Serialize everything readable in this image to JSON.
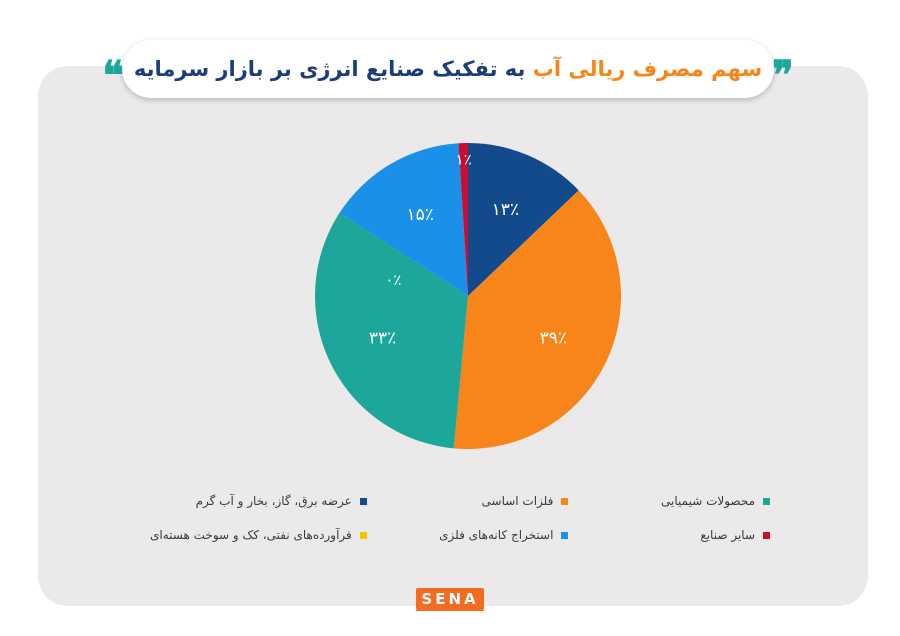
{
  "title": {
    "orange_part": "سهم مصرف ریالی آب",
    "navy_part": "به تفکیک صنایع انرژی بر بازار سرمایه"
  },
  "quote_icons": [
    "quote-open-icon",
    "quote-close-icon"
  ],
  "chart_data": {
    "type": "pie",
    "title": "سهم مصرف ریالی آب به تفکیک صنایع انرژی بر بازار سرمایه",
    "start": "top, clockwise",
    "slices": [
      {
        "name": "عرضه برق، گاز، بخار و آب گرم",
        "value": 13,
        "label": "۱۳٪",
        "color": "#134a8c"
      },
      {
        "name": "فلزات اساسی",
        "value": 39,
        "label": "۳۹٪",
        "color": "#f7851a"
      },
      {
        "name": "محصولات شیمیایی",
        "value": 33,
        "label": "۳۳٪",
        "color": "#1ca79a"
      },
      {
        "name": "فرآورده‌های نفتی، کک و سوخت هسته‌ای",
        "value": 0,
        "label": "۰٪",
        "color": "#f9c200"
      },
      {
        "name": "استخراج کانه‌های فلزی",
        "value": 15,
        "label": "۱۵٪",
        "color": "#1a90e8"
      },
      {
        "name": "سایر صنایع",
        "value": 1,
        "label": "۱٪",
        "color": "#c8102e"
      }
    ]
  },
  "legend": [
    {
      "label": "محصولات شیمیایی",
      "color": "#1ca79a"
    },
    {
      "label": "فلزات اساسی",
      "color": "#f7851a"
    },
    {
      "label": "عرضه برق، گاز، بخار و آب گرم",
      "color": "#134a8c"
    },
    {
      "label": "سایر صنایع",
      "color": "#c8102e"
    },
    {
      "label": "استخراج کانه‌های فلزی",
      "color": "#1a90e8"
    },
    {
      "label": "فرآورده‌های نفتی، کک و سوخت هسته‌ای",
      "color": "#f9c200"
    }
  ],
  "logo": {
    "text": "SENA"
  }
}
